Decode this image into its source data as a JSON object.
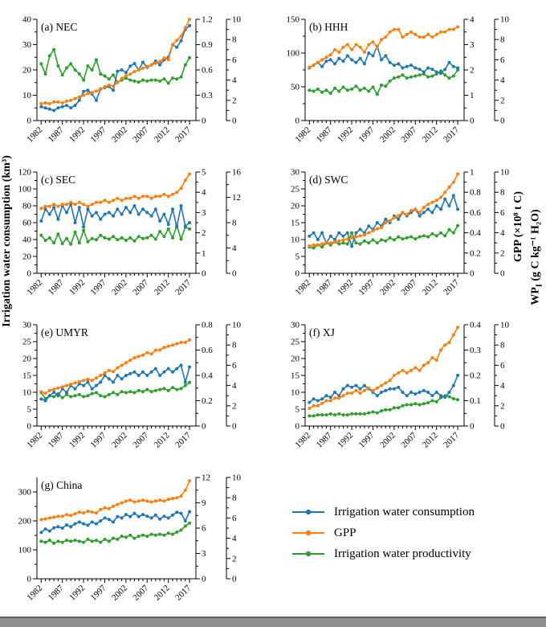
{
  "labels": {
    "y_left": "Irrigation water consumption (km³)",
    "y_right_gpp": "GPP (×10⁸ t C)",
    "y_right_wp_pre": "WP",
    "y_right_wp_sub": "I",
    "y_right_wp_post": " (g C kg⁻¹ H₂O)"
  },
  "colors": {
    "iwc": "#1f77b4",
    "gpp": "#ff7f0e",
    "wp": "#2ca02c"
  },
  "legend": {
    "items": [
      {
        "label": "Irrigation water consumption",
        "color": "#1f77b4"
      },
      {
        "label": "GPP",
        "color": "#ff7f0e"
      },
      {
        "label": "Irrigation water productivity",
        "color": "#2ca02c"
      }
    ]
  },
  "chart_data": {
    "type": "line",
    "x_label_ticks": [
      1982,
      1987,
      1992,
      1997,
      2002,
      2007,
      2012,
      2017
    ],
    "years": [
      1982,
      1983,
      1984,
      1985,
      1986,
      1987,
      1988,
      1989,
      1990,
      1991,
      1992,
      1993,
      1994,
      1995,
      1996,
      1997,
      1998,
      1999,
      2000,
      2001,
      2002,
      2003,
      2004,
      2005,
      2006,
      2007,
      2008,
      2009,
      2010,
      2011,
      2012,
      2013,
      2014,
      2015,
      2016,
      2017
    ],
    "series_names": [
      "Irrigation water consumption",
      "GPP",
      "Irrigation water productivity"
    ],
    "units": {
      "iwc": "km³",
      "gpp": "×10⁸ t C",
      "wp": "g C kg⁻¹ H₂O"
    },
    "panels": [
      {
        "title": "(a) NEC",
        "iwc_lim": [
          0,
          40
        ],
        "iwc_ticks": [
          0,
          10,
          20,
          30,
          40
        ],
        "gpp_lim": [
          0,
          1.2
        ],
        "gpp_ticks": [
          0,
          0.3,
          0.6,
          0.9,
          1.2
        ],
        "wp_lim": [
          0,
          10
        ],
        "wp_ticks": [
          0,
          2,
          4,
          6,
          8,
          10
        ],
        "iwc": [
          5.5,
          5.0,
          4.5,
          4.0,
          5.0,
          5.5,
          6.0,
          5.0,
          6.0,
          8.0,
          11.5,
          12.0,
          10.5,
          8.0,
          12.5,
          13.0,
          13.5,
          12.0,
          19.5,
          20.0,
          19.0,
          21.5,
          22.5,
          20.0,
          23.0,
          21.0,
          22.0,
          23.5,
          22.0,
          24.0,
          25.0,
          30.0,
          29.0,
          31.5,
          36.0,
          37.5
        ],
        "gpp": [
          0.2,
          0.21,
          0.2,
          0.22,
          0.22,
          0.21,
          0.23,
          0.24,
          0.26,
          0.28,
          0.3,
          0.32,
          0.33,
          0.35,
          0.37,
          0.4,
          0.42,
          0.41,
          0.45,
          0.5,
          0.53,
          0.55,
          0.58,
          0.6,
          0.62,
          0.64,
          0.66,
          0.68,
          0.7,
          0.74,
          0.72,
          0.9,
          0.95,
          1.0,
          1.1,
          1.2
        ],
        "wp": [
          5.6,
          4.6,
          6.4,
          7.0,
          5.4,
          4.5,
          5.2,
          5.6,
          5.0,
          4.6,
          4.0,
          5.4,
          5.0,
          6.0,
          4.6,
          4.4,
          4.1,
          4.5,
          3.8,
          4.0,
          4.2,
          4.0,
          3.9,
          3.8,
          4.0,
          3.9,
          4.0,
          4.0,
          3.9,
          4.1,
          3.7,
          4.2,
          4.1,
          4.3,
          5.5,
          6.2
        ]
      },
      {
        "title": "(b) HHH",
        "iwc_lim": [
          0,
          150
        ],
        "iwc_ticks": [
          0,
          50,
          100,
          150
        ],
        "gpp_lim": [
          0,
          4
        ],
        "gpp_ticks": [
          0,
          1,
          2,
          3,
          4
        ],
        "wp_lim": [
          0,
          10
        ],
        "wp_ticks": [
          0,
          2,
          4,
          6,
          8,
          10
        ],
        "iwc": [
          78,
          82,
          86,
          80,
          88,
          90,
          84,
          92,
          88,
          96,
          90,
          86,
          92,
          84,
          100,
          96,
          110,
          90,
          96,
          86,
          82,
          84,
          78,
          80,
          82,
          78,
          76,
          72,
          78,
          76,
          72,
          70,
          76,
          86,
          80,
          78
        ],
        "gpp": [
          2.1,
          2.2,
          2.3,
          2.4,
          2.5,
          2.6,
          2.8,
          2.7,
          2.9,
          3.0,
          2.8,
          3.0,
          2.9,
          2.7,
          3.0,
          3.1,
          2.9,
          3.2,
          3.3,
          3.5,
          3.6,
          3.6,
          3.3,
          3.4,
          3.5,
          3.4,
          3.3,
          3.3,
          3.4,
          3.3,
          3.4,
          3.5,
          3.5,
          3.6,
          3.6,
          3.7
        ],
        "wp": [
          3.0,
          2.9,
          3.1,
          2.8,
          3.0,
          2.7,
          3.2,
          2.9,
          3.3,
          3.0,
          3.1,
          3.4,
          3.0,
          3.2,
          2.9,
          3.3,
          2.6,
          3.5,
          3.4,
          3.9,
          4.2,
          4.3,
          4.5,
          4.2,
          4.3,
          4.4,
          4.5,
          4.6,
          4.3,
          4.4,
          4.6,
          4.9,
          4.5,
          4.2,
          4.4,
          5.0
        ]
      },
      {
        "title": "(c) SEC",
        "iwc_lim": [
          0,
          120
        ],
        "iwc_ticks": [
          0,
          20,
          40,
          60,
          80,
          100,
          120
        ],
        "gpp_lim": [
          0,
          5
        ],
        "gpp_ticks": [
          0,
          1,
          2,
          3,
          4,
          5
        ],
        "wp_lim": [
          0,
          16
        ],
        "wp_ticks": [
          0,
          4,
          8,
          12,
          16
        ],
        "iwc": [
          62,
          76,
          70,
          78,
          64,
          80,
          72,
          82,
          60,
          78,
          55,
          76,
          68,
          72,
          64,
          70,
          72,
          68,
          76,
          70,
          78,
          72,
          80,
          70,
          76,
          72,
          68,
          76,
          62,
          70,
          58,
          76,
          55,
          80,
          56,
          60
        ],
        "gpp": [
          3.2,
          3.3,
          3.3,
          3.4,
          3.3,
          3.4,
          3.4,
          3.5,
          3.4,
          3.5,
          3.4,
          3.3,
          3.4,
          3.5,
          3.5,
          3.6,
          3.5,
          3.6,
          3.7,
          3.6,
          3.7,
          3.7,
          3.8,
          3.7,
          3.8,
          3.8,
          3.7,
          3.8,
          3.8,
          3.9,
          3.8,
          3.9,
          4.0,
          4.2,
          4.6,
          4.9
        ],
        "wp": [
          6.0,
          5.2,
          5.6,
          4.8,
          6.2,
          4.7,
          5.5,
          4.6,
          6.5,
          4.8,
          6.8,
          5.0,
          5.5,
          5.3,
          6.0,
          5.6,
          5.4,
          5.8,
          5.3,
          5.6,
          5.2,
          5.6,
          5.1,
          5.8,
          5.5,
          5.6,
          6.0,
          5.4,
          6.6,
          5.8,
          7.0,
          5.6,
          7.5,
          5.4,
          7.3,
          7.0
        ]
      },
      {
        "title": "(d) SWC",
        "iwc_lim": [
          0,
          30
        ],
        "iwc_ticks": [
          0,
          5,
          10,
          15,
          20,
          25,
          30
        ],
        "gpp_lim": [
          0,
          1
        ],
        "gpp_ticks": [
          0,
          0.2,
          0.4,
          0.6,
          0.8,
          1
        ],
        "wp_lim": [
          0,
          10
        ],
        "wp_ticks": [
          0,
          2,
          4,
          6,
          8,
          10
        ],
        "iwc": [
          11,
          12,
          10,
          12,
          9,
          11,
          10,
          12,
          11,
          12,
          8,
          12,
          13,
          12,
          14,
          13,
          15,
          14,
          16,
          15,
          17,
          16,
          18,
          17,
          18,
          19,
          17,
          18,
          19,
          18,
          20,
          19,
          22,
          20,
          23,
          19
        ],
        "gpp": [
          0.27,
          0.28,
          0.28,
          0.29,
          0.3,
          0.3,
          0.31,
          0.32,
          0.33,
          0.34,
          0.35,
          0.36,
          0.37,
          0.38,
          0.4,
          0.42,
          0.44,
          0.45,
          0.5,
          0.52,
          0.55,
          0.57,
          0.6,
          0.58,
          0.62,
          0.63,
          0.6,
          0.65,
          0.68,
          0.7,
          0.72,
          0.75,
          0.8,
          0.85,
          0.9,
          0.98
        ],
        "wp": [
          2.6,
          2.5,
          2.8,
          2.6,
          3.0,
          2.8,
          3.1,
          2.9,
          3.0,
          2.9,
          4.0,
          3.0,
          2.9,
          3.2,
          3.0,
          3.3,
          3.0,
          3.3,
          3.2,
          3.5,
          3.3,
          3.6,
          3.4,
          3.5,
          3.6,
          3.4,
          3.6,
          3.7,
          3.6,
          3.9,
          3.7,
          4.0,
          3.7,
          4.3,
          4.0,
          4.7
        ]
      },
      {
        "title": "(e) UMYR",
        "iwc_lim": [
          0,
          30
        ],
        "iwc_ticks": [
          0,
          5,
          10,
          15,
          20,
          25,
          30
        ],
        "gpp_lim": [
          0,
          0.8
        ],
        "gpp_ticks": [
          0,
          0.2,
          0.4,
          0.6,
          0.8
        ],
        "wp_lim": [
          0,
          10
        ],
        "wp_ticks": [
          0,
          2,
          4,
          6,
          8,
          10
        ],
        "iwc": [
          8.0,
          7.5,
          9.0,
          10.0,
          9.0,
          11.0,
          10.0,
          12.0,
          11.0,
          12.5,
          12.0,
          13.0,
          11.0,
          12.0,
          13.0,
          15.0,
          14.0,
          13.0,
          15.0,
          14.0,
          15.0,
          15.5,
          16.0,
          15.0,
          16.0,
          15.0,
          16.0,
          17.0,
          15.0,
          16.0,
          17.0,
          16.0,
          17.0,
          18.0,
          13.0,
          17.5
        ],
        "gpp": [
          0.27,
          0.26,
          0.28,
          0.29,
          0.3,
          0.31,
          0.32,
          0.33,
          0.34,
          0.35,
          0.36,
          0.37,
          0.36,
          0.38,
          0.4,
          0.42,
          0.44,
          0.43,
          0.46,
          0.48,
          0.5,
          0.52,
          0.54,
          0.55,
          0.56,
          0.58,
          0.57,
          0.6,
          0.6,
          0.62,
          0.63,
          0.64,
          0.65,
          0.66,
          0.66,
          0.68
        ],
        "wp": [
          3.3,
          2.7,
          3.0,
          2.9,
          3.2,
          2.8,
          3.1,
          2.9,
          3.0,
          3.1,
          2.9,
          3.0,
          3.2,
          3.3,
          3.0,
          2.9,
          3.1,
          3.3,
          3.1,
          3.4,
          3.3,
          3.4,
          3.3,
          3.5,
          3.4,
          3.6,
          3.4,
          3.5,
          3.6,
          3.7,
          3.5,
          3.8,
          3.6,
          3.7,
          4.0,
          4.3
        ]
      },
      {
        "title": "(f) XJ",
        "iwc_lim": [
          0,
          30
        ],
        "iwc_ticks": [
          0,
          5,
          10,
          15,
          20,
          25,
          30
        ],
        "gpp_lim": [
          0,
          0.4
        ],
        "gpp_ticks": [
          0,
          0.1,
          0.2,
          0.3,
          0.4
        ],
        "wp_lim": [
          0,
          10
        ],
        "wp_ticks": [
          0,
          2,
          4,
          6,
          8,
          10
        ],
        "iwc": [
          7.0,
          8.0,
          7.5,
          8.0,
          9.0,
          8.5,
          10.0,
          9.0,
          11.0,
          12.0,
          11.5,
          12.0,
          11.0,
          12.0,
          11.0,
          10.0,
          9.0,
          10.0,
          10.5,
          11.0,
          11.0,
          11.5,
          10.0,
          9.0,
          10.0,
          9.5,
          10.0,
          10.5,
          10.0,
          9.0,
          10.0,
          9.0,
          8.5,
          10.0,
          12.0,
          15.0
        ],
        "gpp": [
          0.07,
          0.08,
          0.08,
          0.09,
          0.1,
          0.1,
          0.11,
          0.11,
          0.12,
          0.13,
          0.13,
          0.14,
          0.13,
          0.14,
          0.15,
          0.14,
          0.15,
          0.16,
          0.17,
          0.18,
          0.2,
          0.21,
          0.22,
          0.21,
          0.22,
          0.23,
          0.22,
          0.24,
          0.25,
          0.27,
          0.26,
          0.3,
          0.32,
          0.33,
          0.36,
          0.39
        ],
        "wp": [
          1.0,
          1.0,
          1.1,
          1.1,
          1.1,
          1.2,
          1.1,
          1.2,
          1.1,
          1.1,
          1.2,
          1.2,
          1.2,
          1.2,
          1.3,
          1.4,
          1.3,
          1.5,
          1.6,
          1.6,
          1.8,
          1.8,
          2.0,
          2.1,
          2.1,
          2.2,
          2.1,
          2.2,
          2.3,
          2.5,
          2.4,
          2.8,
          3.0,
          2.9,
          2.7,
          2.6
        ]
      },
      {
        "title": "(g) China",
        "iwc_lim": [
          0,
          350
        ],
        "iwc_ticks": [
          0,
          100,
          200,
          300
        ],
        "gpp_lim": [
          0,
          12
        ],
        "gpp_ticks": [
          0,
          3,
          6,
          9,
          12
        ],
        "wp_lim": [
          0,
          10
        ],
        "wp_ticks": [
          0,
          2,
          4,
          6,
          8,
          10
        ],
        "iwc": [
          160,
          172,
          165,
          176,
          180,
          175,
          186,
          180,
          190,
          196,
          190,
          185,
          196,
          190,
          200,
          210,
          205,
          196,
          215,
          210,
          222,
          215,
          226,
          215,
          222,
          216,
          210,
          220,
          206,
          216,
          210,
          220,
          230,
          226,
          200,
          232
        ],
        "gpp": [
          7.0,
          7.1,
          7.2,
          7.3,
          7.4,
          7.4,
          7.6,
          7.5,
          7.7,
          7.9,
          7.8,
          8.0,
          7.9,
          7.8,
          8.2,
          8.4,
          8.3,
          8.6,
          8.8,
          9.0,
          9.2,
          9.3,
          9.1,
          9.2,
          9.3,
          9.2,
          9.1,
          9.2,
          9.3,
          9.2,
          9.4,
          9.5,
          9.6,
          9.8,
          10.5,
          11.6
        ],
        "wp": [
          3.7,
          3.6,
          3.8,
          3.5,
          3.7,
          3.6,
          3.8,
          3.7,
          3.8,
          3.7,
          3.6,
          3.9,
          3.7,
          3.8,
          3.6,
          3.9,
          3.7,
          4.0,
          3.9,
          4.2,
          4.1,
          4.3,
          4.0,
          4.2,
          4.3,
          4.2,
          4.4,
          4.3,
          4.4,
          4.3,
          4.5,
          4.4,
          4.6,
          4.8,
          5.2,
          5.5
        ]
      }
    ]
  }
}
